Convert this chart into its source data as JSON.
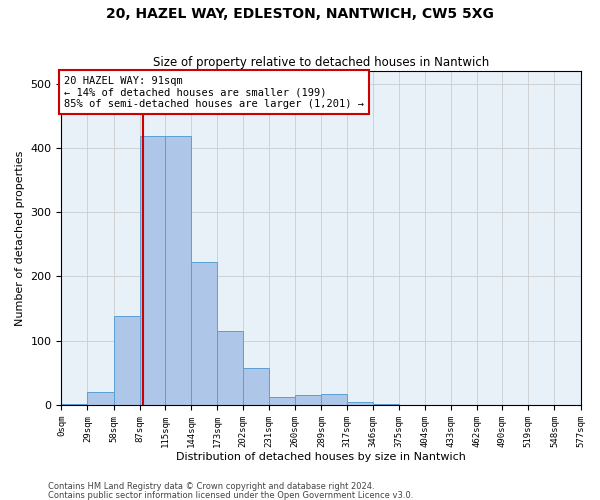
{
  "title1": "20, HAZEL WAY, EDLESTON, NANTWICH, CW5 5XG",
  "title2": "Size of property relative to detached houses in Nantwich",
  "xlabel": "Distribution of detached houses by size in Nantwich",
  "ylabel": "Number of detached properties",
  "bin_edges": [
    0,
    29,
    58,
    87,
    115,
    144,
    173,
    202,
    231,
    260,
    289,
    317,
    346,
    375,
    404,
    433,
    462,
    490,
    519,
    548,
    577
  ],
  "bar_heights": [
    2,
    20,
    138,
    418,
    418,
    223,
    115,
    57,
    13,
    16,
    17,
    5,
    1,
    0,
    0,
    0,
    0,
    0,
    0,
    0
  ],
  "bar_color": "#aec6e8",
  "bar_edgecolor": "#5a9fd4",
  "vline_x": 91,
  "vline_color": "#cc0000",
  "annotation_line1": "20 HAZEL WAY: 91sqm",
  "annotation_line2": "← 14% of detached houses are smaller (199)",
  "annotation_line3": "85% of semi-detached houses are larger (1,201) →",
  "annotation_box_color": "#ffffff",
  "annotation_box_edgecolor": "#cc0000",
  "grid_color": "#cccccc",
  "background_color": "#e8f0f8",
  "ylim": [
    0,
    520
  ],
  "xlim": [
    0,
    577
  ],
  "tick_labels": [
    "0sqm",
    "29sqm",
    "58sqm",
    "87sqm",
    "115sqm",
    "144sqm",
    "173sqm",
    "202sqm",
    "231sqm",
    "260sqm",
    "289sqm",
    "317sqm",
    "346sqm",
    "375sqm",
    "404sqm",
    "433sqm",
    "462sqm",
    "490sqm",
    "519sqm",
    "548sqm",
    "577sqm"
  ],
  "footnote1": "Contains HM Land Registry data © Crown copyright and database right 2024.",
  "footnote2": "Contains public sector information licensed under the Open Government Licence v3.0.",
  "title1_fontsize": 10,
  "title2_fontsize": 8.5,
  "xlabel_fontsize": 8,
  "ylabel_fontsize": 8,
  "tick_fontsize": 6.5,
  "ytick_fontsize": 8,
  "annot_fontsize": 7.5,
  "footnote_fontsize": 6
}
